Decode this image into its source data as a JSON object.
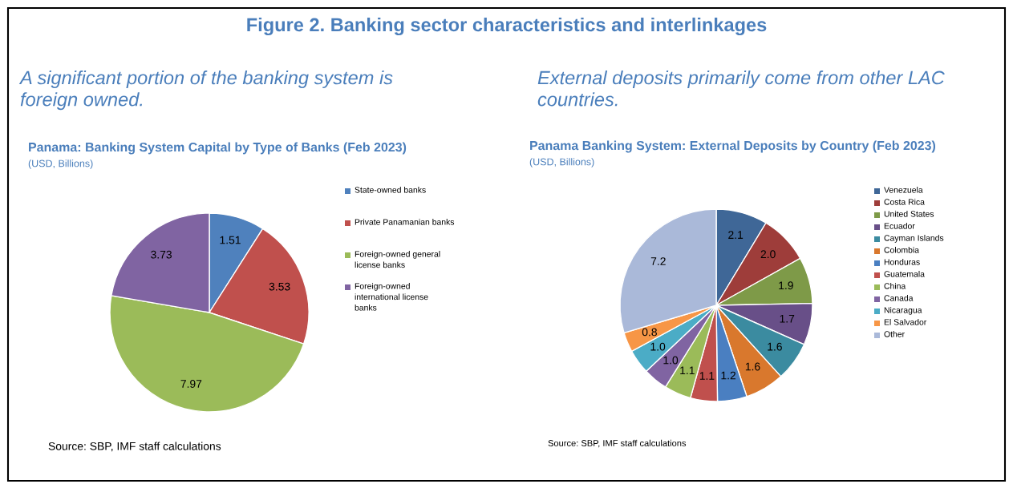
{
  "chart_data": [
    {
      "type": "pie",
      "title": "Panama: Banking System Capital by Type of Banks (Feb 2023)",
      "subtitle": "(USD, Billions)",
      "annotations": [
        "Figure 2. Banking sector characteristics and interlinkages",
        "A significant portion of the banking system is foreign owned.",
        "Source: SBP, IMF staff calculations"
      ],
      "categories": [
        "State-owned banks",
        "Private Panamanian banks",
        "Foreign-owned general license banks",
        "Foreign-owned international license banks"
      ],
      "values": [
        1.51,
        3.53,
        7.97,
        3.73
      ],
      "colors": [
        "#4f81bd",
        "#c0504d",
        "#9bbb59",
        "#8064a2"
      ],
      "data_labels": true,
      "legend": "right"
    },
    {
      "type": "pie",
      "title": "Panama Banking System: External Deposits by Country (Feb 2023)",
      "subtitle": "(USD, Billions)",
      "annotations": [
        "External deposits primarily come from other LAC countries.",
        "Source: SBP, IMF staff calculations"
      ],
      "categories": [
        "Venezuela",
        "Costa Rica",
        "United States",
        "Ecuador",
        "Cayman Islands",
        "Colombia",
        "Honduras",
        "Guatemala",
        "China",
        "Canada",
        "Nicaragua",
        "El Salvador",
        "Other"
      ],
      "values": [
        2.1,
        2.0,
        1.9,
        1.7,
        1.6,
        1.6,
        1.2,
        1.1,
        1.1,
        1.0,
        1.0,
        0.8,
        7.2
      ],
      "value_labels": [
        "2.1",
        "2.0",
        "1.9",
        "1.7",
        "1.6",
        "1.6",
        "1.2",
        "1.1",
        "1.1",
        "1.0",
        "1.0",
        "0.8",
        "7.2"
      ],
      "colors": [
        "#3f6797",
        "#9e3d3a",
        "#7e9a48",
        "#684f88",
        "#3b8ba0",
        "#d9782d",
        "#4a7fc1",
        "#c0504d",
        "#9bbb59",
        "#8064a2",
        "#4bacc6",
        "#f79646",
        "#aab9d9"
      ],
      "legend": "right"
    }
  ]
}
